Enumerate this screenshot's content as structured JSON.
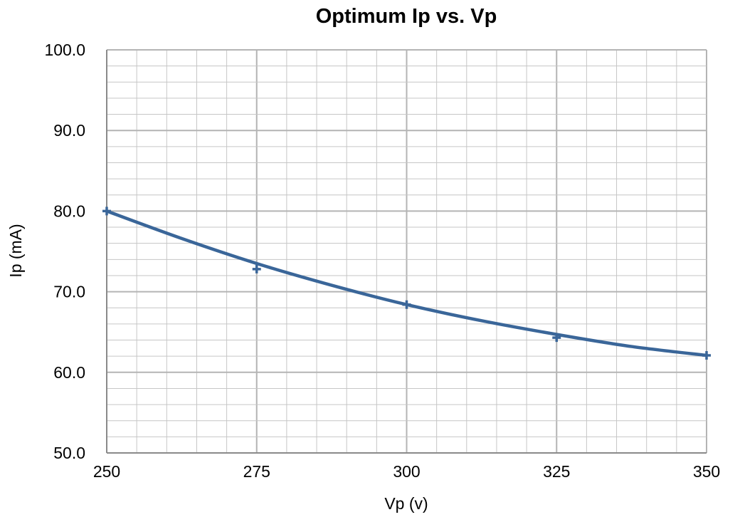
{
  "chart_data": {
    "type": "scatter",
    "title": "Optimum Ip vs. Vp",
    "xlabel": "Vp (v)",
    "ylabel": "Ip (mA)",
    "xlim": [
      250,
      350
    ],
    "ylim": [
      50,
      100
    ],
    "x_ticks": [
      "250",
      "275",
      "300",
      "325",
      "350"
    ],
    "y_ticks": [
      "50.0",
      "60.0",
      "70.0",
      "80.0",
      "90.0",
      "100.0"
    ],
    "grid": true,
    "legend": "none",
    "series": [
      {
        "marker": "plus",
        "color": "#3a6699",
        "points": [
          {
            "x": 250,
            "y": 80.0
          },
          {
            "x": 275,
            "y": 72.8
          },
          {
            "x": 300,
            "y": 68.4
          },
          {
            "x": 325,
            "y": 64.3
          },
          {
            "x": 350,
            "y": 62.1
          }
        ],
        "trendline": {
          "type": "polynomial",
          "color": "#3a6699",
          "points": [
            {
              "x": 250,
              "y": 80.0
            },
            {
              "x": 262.5,
              "y": 76.6
            },
            {
              "x": 275,
              "y": 73.5
            },
            {
              "x": 287.5,
              "y": 70.8
            },
            {
              "x": 300,
              "y": 68.4
            },
            {
              "x": 312.5,
              "y": 66.4
            },
            {
              "x": 325,
              "y": 64.7
            },
            {
              "x": 337.5,
              "y": 63.2
            },
            {
              "x": 350,
              "y": 62.1
            }
          ]
        }
      }
    ]
  }
}
